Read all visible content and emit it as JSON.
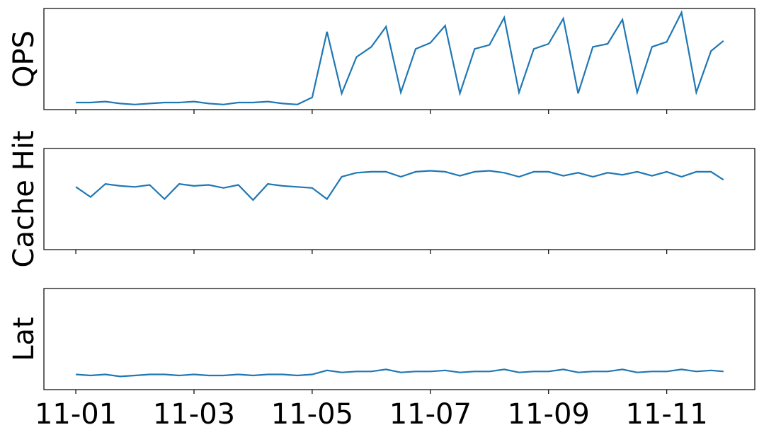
{
  "chart_data": [
    {
      "type": "line",
      "ylabel": "QPS",
      "xlim": [
        -0.54,
        11.49
      ],
      "ylim": [
        0,
        100
      ],
      "x": [
        0,
        0.25,
        0.5,
        0.75,
        1,
        1.25,
        1.5,
        1.75,
        2,
        2.25,
        2.5,
        2.75,
        3,
        3.25,
        3.5,
        3.75,
        4,
        4.25,
        4.5,
        4.75,
        5,
        5.25,
        5.5,
        5.75,
        6,
        6.25,
        6.5,
        6.75,
        7,
        7.25,
        7.5,
        7.75,
        8,
        8.25,
        8.5,
        8.75,
        9,
        9.25,
        9.5,
        9.75,
        10,
        10.25,
        10.5,
        10.75,
        10.96
      ],
      "series": [
        {
          "color": "#1f77b4",
          "values": [
            7,
            7,
            8,
            6,
            5,
            6,
            7,
            7,
            8,
            6,
            5,
            7,
            7,
            8,
            6,
            5,
            12,
            77,
            16,
            52,
            62,
            82,
            17,
            60,
            66,
            83,
            16,
            60,
            64,
            91,
            17,
            60,
            65,
            90,
            16,
            62,
            65,
            89,
            17,
            62,
            67,
            96,
            17,
            58,
            68
          ]
        }
      ]
    },
    {
      "type": "line",
      "ylabel": "Cache Hit",
      "xlim": [
        -0.54,
        11.49
      ],
      "ylim": [
        0,
        100
      ],
      "x": [
        0,
        0.25,
        0.5,
        0.75,
        1,
        1.25,
        1.5,
        1.75,
        2,
        2.25,
        2.5,
        2.75,
        3,
        3.25,
        3.5,
        3.75,
        4,
        4.25,
        4.5,
        4.75,
        5,
        5.25,
        5.5,
        5.75,
        6,
        6.25,
        6.5,
        6.75,
        7,
        7.25,
        7.5,
        7.75,
        8,
        8.25,
        8.5,
        8.75,
        9,
        9.25,
        9.5,
        9.75,
        10,
        10.25,
        10.5,
        10.75,
        10.96
      ],
      "series": [
        {
          "color": "#1f77b4",
          "values": [
            62,
            52,
            65,
            63,
            62,
            64,
            50,
            65,
            63,
            64,
            61,
            64,
            49,
            65,
            63,
            62,
            61,
            50,
            72,
            76,
            77,
            77,
            72,
            77,
            78,
            77,
            73,
            77,
            78,
            76,
            72,
            77,
            77,
            73,
            76,
            72,
            76,
            74,
            77,
            73,
            77,
            72,
            77,
            77,
            69
          ]
        }
      ]
    },
    {
      "type": "line",
      "ylabel": "Lat",
      "xlim": [
        -0.54,
        11.49
      ],
      "ylim": [
        0,
        100
      ],
      "x": [
        0,
        0.25,
        0.5,
        0.75,
        1,
        1.25,
        1.5,
        1.75,
        2,
        2.25,
        2.5,
        2.75,
        3,
        3.25,
        3.5,
        3.75,
        4,
        4.25,
        4.5,
        4.75,
        5,
        5.25,
        5.5,
        5.75,
        6,
        6.25,
        6.5,
        6.75,
        7,
        7.25,
        7.5,
        7.75,
        8,
        8.25,
        8.5,
        8.75,
        9,
        9.25,
        9.5,
        9.75,
        10,
        10.25,
        10.5,
        10.75,
        10.96
      ],
      "series": [
        {
          "color": "#1f77b4",
          "values": [
            15,
            14,
            15,
            13,
            14,
            15,
            15,
            14,
            15,
            14,
            14,
            15,
            14,
            15,
            15,
            14,
            15,
            19,
            17,
            18,
            18,
            20,
            17,
            18,
            18,
            19,
            17,
            18,
            18,
            20,
            17,
            18,
            18,
            20,
            17,
            18,
            18,
            20,
            17,
            18,
            18,
            20,
            18,
            19,
            18
          ]
        }
      ],
      "xticks": [
        {
          "value": 0,
          "label": "11-01"
        },
        {
          "value": 2,
          "label": "11-03"
        },
        {
          "value": 4,
          "label": "11-05"
        },
        {
          "value": 6,
          "label": "11-07"
        },
        {
          "value": 8,
          "label": "11-09"
        },
        {
          "value": 10,
          "label": "11-11"
        }
      ]
    }
  ]
}
